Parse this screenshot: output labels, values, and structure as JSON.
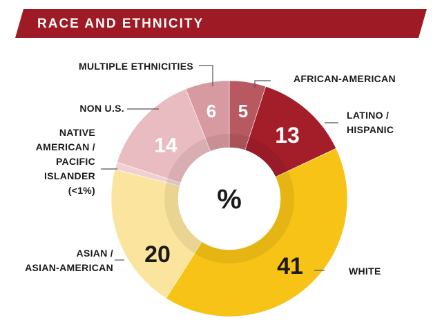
{
  "header": {
    "title": "RACE AND ETHNICITY"
  },
  "colors": {
    "banner": "#9e1b25",
    "african_american": "#b85860",
    "latino_hispanic": "#a41e2a",
    "white": "#f7c316",
    "asian": "#fbe59e",
    "native": "#f1d0d4",
    "non_us": "#e9bcc1",
    "multiple": "#d89aa1"
  },
  "chart_data": {
    "type": "pie",
    "donut": true,
    "center_label": "%",
    "slices": [
      {
        "key": "african_american",
        "label_lines": [
          "AFRICAN-AMERICAN"
        ],
        "value": 5,
        "value_label": "5"
      },
      {
        "key": "latino_hispanic",
        "label_lines": [
          "LATINO /",
          "HISPANIC"
        ],
        "value": 13,
        "value_label": "13"
      },
      {
        "key": "white",
        "label_lines": [
          "WHITE"
        ],
        "value": 41,
        "value_label": "41"
      },
      {
        "key": "asian",
        "label_lines": [
          "ASIAN /",
          "ASIAN-AMERICAN"
        ],
        "value": 20,
        "value_label": "20"
      },
      {
        "key": "native",
        "label_lines": [
          "NATIVE",
          "AMERICAN /",
          "PACIFIC",
          "ISLANDER",
          "(<1%)"
        ],
        "value": 1,
        "value_label": ""
      },
      {
        "key": "non_us",
        "label_lines": [
          "NON U.S."
        ],
        "value": 14,
        "value_label": "14"
      },
      {
        "key": "multiple",
        "label_lines": [
          "MULTIPLE ETHNICITIES"
        ],
        "value": 6,
        "value_label": "6"
      }
    ]
  }
}
